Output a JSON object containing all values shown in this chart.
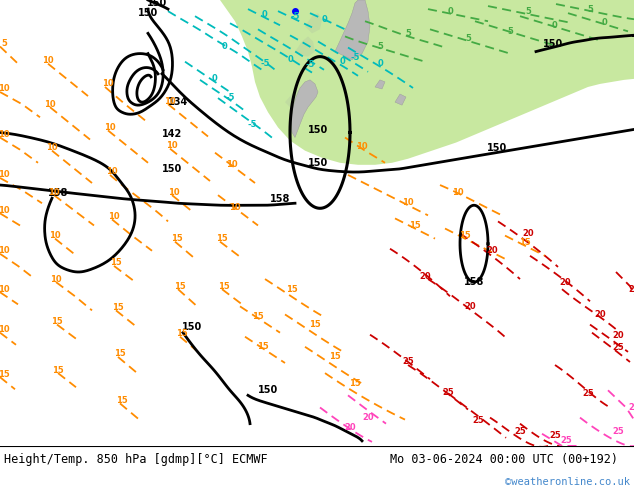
{
  "title_left": "Height/Temp. 850 hPa [gdmp][°C] ECMWF",
  "title_right": "Mo 03-06-2024 00:00 UTC (00+192)",
  "watermark": "©weatheronline.co.uk",
  "bg_main": "#e0e0e0",
  "bg_green": "#c8e8a0",
  "bg_land_gray": "#c8c8c8",
  "color_orange": "#ff8c00",
  "color_cyan": "#00bbbb",
  "color_green_iso": "#44aa44",
  "color_red": "#cc0000",
  "color_magenta": "#ff44bb",
  "color_black": "#000000",
  "color_blue_dot": "#0000ff",
  "footer_color": "#000000",
  "watermark_color": "#4488cc"
}
